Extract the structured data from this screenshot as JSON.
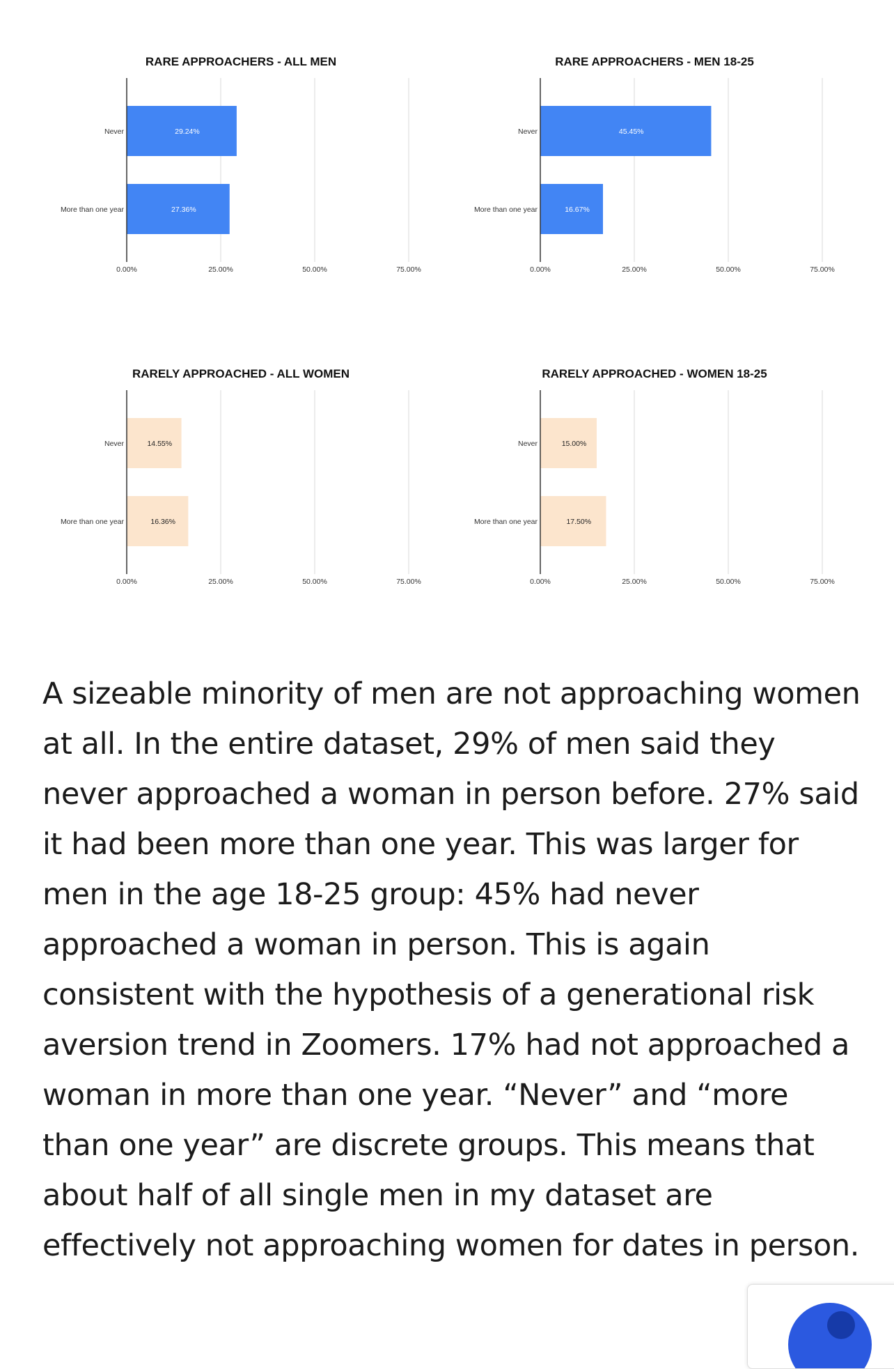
{
  "chart_data": [
    {
      "type": "bar",
      "orientation": "horizontal",
      "title": "RARE APPROACHERS - ALL MEN",
      "categories": [
        "Never",
        "More than one year"
      ],
      "values": [
        29.24,
        27.36
      ],
      "value_labels": [
        "29.24%",
        "27.36%"
      ],
      "xlim": [
        0,
        100
      ],
      "ticks": [
        "0.00%",
        "25.00%",
        "50.00%",
        "75.00%"
      ],
      "tick_values": [
        0,
        25,
        50,
        75
      ],
      "grid": true,
      "legend": "none",
      "bar_color": "#4285f4",
      "label_color": "#ffffff"
    },
    {
      "type": "bar",
      "orientation": "horizontal",
      "title": "RARE APPROACHERS - MEN 18-25",
      "categories": [
        "Never",
        "More than one year"
      ],
      "values": [
        45.45,
        16.67
      ],
      "value_labels": [
        "45.45%",
        "16.67%"
      ],
      "xlim": [
        0,
        100
      ],
      "ticks": [
        "0.00%",
        "25.00%",
        "50.00%",
        "75.00%"
      ],
      "tick_values": [
        0,
        25,
        50,
        75
      ],
      "grid": true,
      "legend": "none",
      "bar_color": "#4285f4",
      "label_color": "#ffffff"
    },
    {
      "type": "bar",
      "orientation": "horizontal",
      "title": "RARELY APPROACHED - ALL WOMEN",
      "categories": [
        "Never",
        "More than one year"
      ],
      "values": [
        14.55,
        16.36
      ],
      "value_labels": [
        "14.55%",
        "16.36%"
      ],
      "xlim": [
        0,
        100
      ],
      "ticks": [
        "0.00%",
        "25.00%",
        "50.00%",
        "75.00%"
      ],
      "tick_values": [
        0,
        25,
        50,
        75
      ],
      "grid": true,
      "legend": "none",
      "bar_color": "#fce5cd",
      "label_color": "#222222"
    },
    {
      "type": "bar",
      "orientation": "horizontal",
      "title": "RARELY APPROACHED - WOMEN 18-25",
      "categories": [
        "Never",
        "More than one year"
      ],
      "values": [
        15.0,
        17.5
      ],
      "value_labels": [
        "15.00%",
        "17.50%"
      ],
      "xlim": [
        0,
        100
      ],
      "ticks": [
        "0.00%",
        "25.00%",
        "50.00%",
        "75.00%"
      ],
      "tick_values": [
        0,
        25,
        50,
        75
      ],
      "grid": true,
      "legend": "none",
      "bar_color": "#fce5cd",
      "label_color": "#222222"
    }
  ],
  "article": {
    "paragraph": "A sizeable minority of men are not approaching women at all. In the entire dataset, 29% of men said they never approached a woman in person before. 27% said it had been more than one year. This was larger for men in the age 18-25 group: 45% had never approached a woman in person. This is again consistent with the hypothesis of a generational risk aversion trend in Zoomers. 17% had not approached a woman in more than one year. “Never” and “more than one year” are discrete groups. This means that about half of all single men in my dataset are effectively not approaching women for dates in person."
  },
  "colors": {
    "axis": "#333333",
    "gridline": "#d9d9d9"
  }
}
